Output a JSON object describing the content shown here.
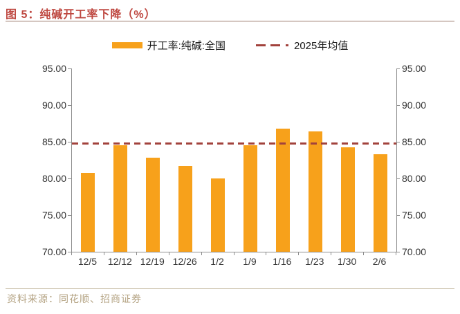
{
  "header": {
    "title": "图 5：纯碱开工率下降（%）"
  },
  "legend": {
    "items": [
      {
        "label": "开工率:纯碱:全国",
        "type": "bar",
        "color": "#F7A11B"
      },
      {
        "label": "2025年均值",
        "type": "dashed-line",
        "color": "#A2423C"
      }
    ]
  },
  "chart_data": {
    "type": "bar",
    "categories": [
      "12/5",
      "12/12",
      "12/19",
      "12/26",
      "1/2",
      "1/9",
      "1/16",
      "1/23",
      "1/30",
      "2/6"
    ],
    "series": [
      {
        "name": "开工率:纯碱:全国",
        "color": "#F7A11B",
        "values": [
          80.8,
          84.5,
          82.8,
          81.7,
          80.0,
          84.5,
          86.8,
          86.4,
          84.2,
          83.3
        ]
      }
    ],
    "reference_line": {
      "name": "2025年均值",
      "value": 84.8,
      "style": "dashed",
      "color": "#A2423C"
    },
    "title": "纯碱开工率下降（%）",
    "xlabel": "",
    "ylabel": "",
    "ylim": [
      70,
      95
    ],
    "yticks": [
      70,
      75,
      80,
      85,
      90,
      95
    ],
    "ytick_labels": [
      "70.00",
      "75.00",
      "80.00",
      "85.00",
      "90.00",
      "95.00"
    ],
    "grid": false,
    "legend_position": "top",
    "dual_y_axis": true
  },
  "footer": {
    "source": "资料来源：同花顺、招商证券"
  },
  "colors": {
    "bar": "#F7A11B",
    "reference_line": "#A2423C",
    "title": "#BE4740",
    "title_rule": "#9A786A",
    "axis": "#8C8C8C",
    "tick_label": "#333333",
    "footer_text": "#B4A383",
    "footer_rule": "#C3B79F"
  }
}
